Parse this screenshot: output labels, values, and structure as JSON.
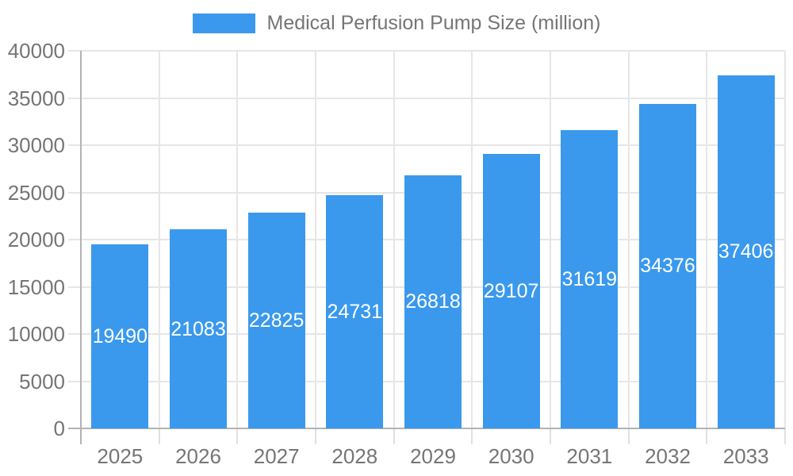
{
  "colors": {
    "bar": "#3a99ed",
    "grid_line": "#e6e6e6",
    "axis_line": "#b3b3b3",
    "minor_tick": "#e0e0e0",
    "axis_text": "#757575",
    "bar_label_text": "#ffffff",
    "background": "#ffffff"
  },
  "chart_data": {
    "type": "bar",
    "title": "Medical Perfusion Pump Size (million)",
    "series_name": "Medical Perfusion Pump Size (million)",
    "categories": [
      "2025",
      "2026",
      "2027",
      "2028",
      "2029",
      "2030",
      "2031",
      "2032",
      "2033"
    ],
    "values": [
      19490,
      21083,
      22825,
      24731,
      26818,
      29107,
      31619,
      34376,
      37406
    ],
    "value_labels": [
      "19490",
      "21083",
      "22825",
      "24731",
      "26818",
      "29107",
      "31619",
      "34376",
      "37406"
    ],
    "xlabel": "",
    "ylabel": "",
    "ylim": [
      0,
      40000
    ],
    "ytick_step": 5000,
    "ytick_labels": [
      "0",
      "5000",
      "10000",
      "15000",
      "20000",
      "25000",
      "30000",
      "35000",
      "40000"
    ],
    "grid": true,
    "legend_position": "top",
    "bar_labels_visible": true,
    "bar_label_position": "center"
  }
}
